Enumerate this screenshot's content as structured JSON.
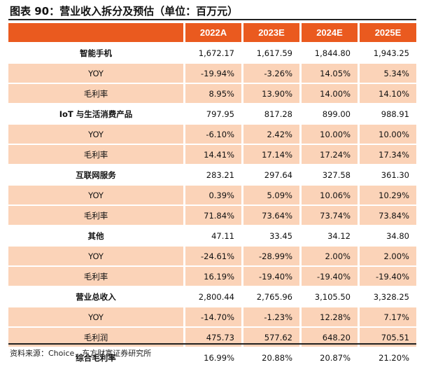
{
  "title": "图表 90：营业收入拆分及预估（单位：百万元）",
  "columns": [
    "",
    "2022A",
    "2023E",
    "2024E",
    "2025E"
  ],
  "rows": [
    {
      "type": "main",
      "label": "智能手机",
      "values": [
        "1,672.17",
        "1,617.59",
        "1,844.80",
        "1,943.25"
      ]
    },
    {
      "type": "sub",
      "label": "YOY",
      "values": [
        "-19.94%",
        "-3.26%",
        "14.05%",
        "5.34%"
      ]
    },
    {
      "type": "sub",
      "label": "毛利率",
      "values": [
        "8.95%",
        "13.90%",
        "14.00%",
        "14.10%"
      ]
    },
    {
      "type": "main",
      "label": "IoT 与生活消费产品",
      "values": [
        "797.95",
        "817.28",
        "899.00",
        "988.91"
      ]
    },
    {
      "type": "sub",
      "label": "YOY",
      "values": [
        "-6.10%",
        "2.42%",
        "10.00%",
        "10.00%"
      ]
    },
    {
      "type": "sub",
      "label": "毛利率",
      "values": [
        "14.41%",
        "17.14%",
        "17.24%",
        "17.34%"
      ]
    },
    {
      "type": "main",
      "label": "互联网服务",
      "values": [
        "283.21",
        "297.64",
        "327.58",
        "361.30"
      ]
    },
    {
      "type": "sub",
      "label": "YOY",
      "values": [
        "0.39%",
        "5.09%",
        "10.06%",
        "10.29%"
      ]
    },
    {
      "type": "sub",
      "label": "毛利率",
      "values": [
        "71.84%",
        "73.64%",
        "73.74%",
        "73.84%"
      ]
    },
    {
      "type": "main",
      "label": "其他",
      "values": [
        "47.11",
        "33.45",
        "34.12",
        "34.80"
      ]
    },
    {
      "type": "sub",
      "label": "YOY",
      "values": [
        "-24.61%",
        "-28.99%",
        "2.00%",
        "2.00%"
      ]
    },
    {
      "type": "sub",
      "label": "毛利率",
      "values": [
        "16.19%",
        "-19.40%",
        "-19.40%",
        "-19.40%"
      ]
    },
    {
      "type": "main",
      "label": "营业总收入",
      "values": [
        "2,800.44",
        "2,765.96",
        "3,105.50",
        "3,328.25"
      ]
    },
    {
      "type": "sub",
      "label": "YOY",
      "values": [
        "-14.70%",
        "-1.23%",
        "12.28%",
        "7.17%"
      ]
    },
    {
      "type": "sub",
      "label": "毛利润",
      "values": [
        "475.73",
        "577.62",
        "648.20",
        "705.51"
      ]
    },
    {
      "type": "main",
      "label": "综合毛利率",
      "values": [
        "16.99%",
        "20.88%",
        "20.87%",
        "21.20%"
      ]
    }
  ],
  "source": "资料来源：Choice，东方财富证券研究所",
  "colors": {
    "header": "#ea5a1f",
    "subrow": "#fbd3b8"
  }
}
